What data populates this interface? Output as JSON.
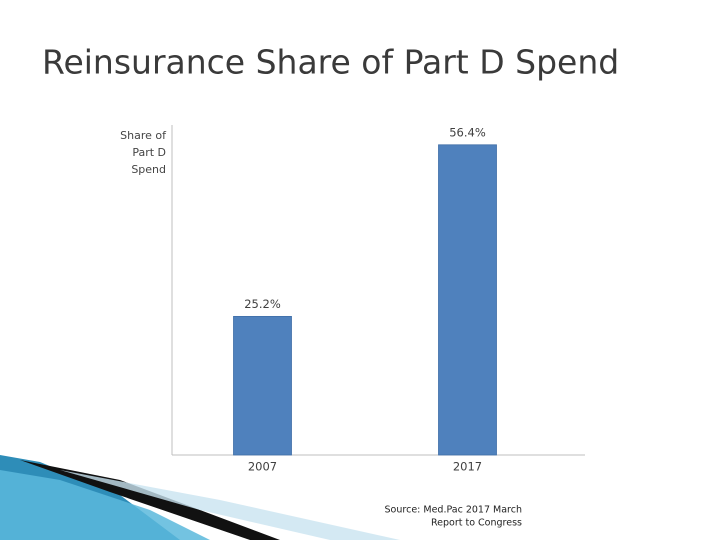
{
  "chart_data": {
    "type": "bar",
    "title": "Reinsurance Share of Part D Spend",
    "y_label": [
      "Share of",
      "Part D",
      "Spend"
    ],
    "categories": [
      "2007",
      "2017"
    ],
    "values": [
      25.2,
      56.4
    ],
    "value_labels": [
      "25.2%",
      "56.4%"
    ],
    "color": "#4f81bd",
    "ylim": [
      0,
      60
    ],
    "source": [
      "Source: Med.Pac 2017 March",
      "Report to Congress"
    ]
  }
}
